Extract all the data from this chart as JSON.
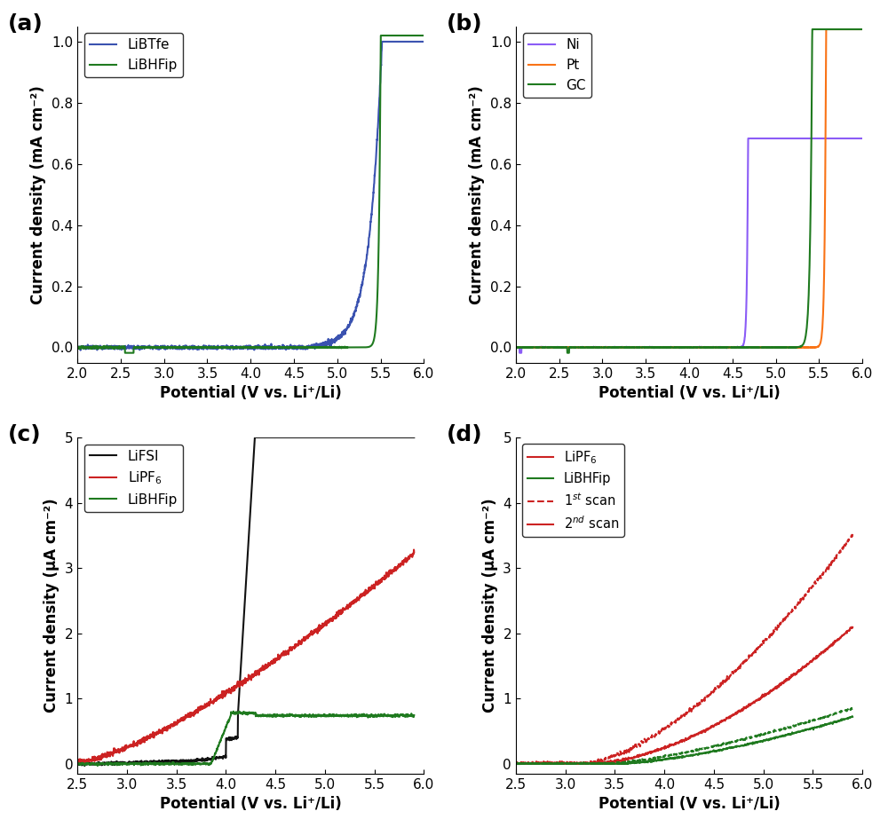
{
  "panel_labels": [
    "(a)",
    "(b)",
    "(c)",
    "(d)"
  ],
  "panel_label_fontsize": 18,
  "ab_xlim": [
    2.0,
    6.0
  ],
  "ab_ylim": [
    -0.05,
    1.05
  ],
  "ab_xticks": [
    2.0,
    2.5,
    3.0,
    3.5,
    4.0,
    4.5,
    5.0,
    5.5,
    6.0
  ],
  "ab_yticks": [
    0.0,
    0.2,
    0.4,
    0.6,
    0.8,
    1.0
  ],
  "ab_xlabel": "Potential (V vs. Li⁺/Li)",
  "ab_ylabel": "Current density (mA cm⁻²)",
  "cd_xlim": [
    2.5,
    6.0
  ],
  "cd_ylim": [
    -0.15,
    5.0
  ],
  "cd_xticks": [
    2.5,
    3.0,
    3.5,
    4.0,
    4.5,
    5.0,
    5.5,
    6.0
  ],
  "cd_yticks": [
    0,
    1,
    2,
    3,
    4,
    5
  ],
  "cd_xlabel": "Potential (V vs. Li⁺/Li)",
  "cd_ylabel": "Current density (μA cm⁻²)",
  "axis_label_fontsize": 12,
  "tick_fontsize": 11,
  "legend_fontsize": 11,
  "line_width": 1.5,
  "a_LiBTfe_color": "#3a52b0",
  "a_LiBHFip_color": "#1f7a1f",
  "b_Ni_color": "#8b5cf6",
  "b_Pt_color": "#f97316",
  "b_GC_color": "#1f7a1f",
  "c_LiFSI_color": "#111111",
  "c_LiPF6_color": "#cc2222",
  "c_LiBHFip_color": "#1f7a1f",
  "d_LiPF6_color": "#cc2222",
  "d_LiBHFip_color": "#1f7a1f"
}
